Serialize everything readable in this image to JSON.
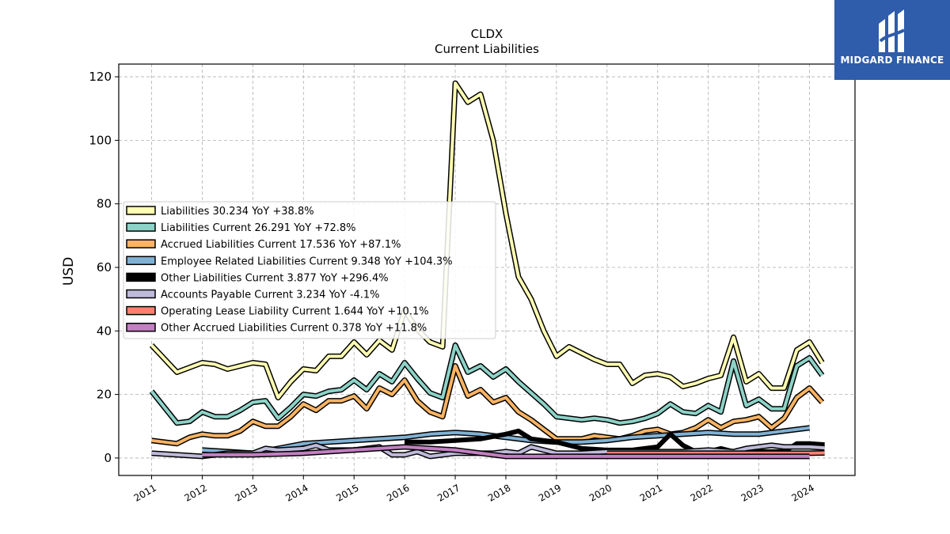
{
  "chart_data": {
    "type": "line",
    "title": "CLDX",
    "subtitle": "Current  Liabilities",
    "ylabel": "USD",
    "xlabel": "",
    "ylim": [
      -5.5,
      124
    ],
    "xlim": [
      2010.35,
      2024.9
    ],
    "yticks": [
      0,
      20,
      40,
      60,
      80,
      100,
      120
    ],
    "xticks": [
      2011,
      2012,
      2013,
      2014,
      2015,
      2016,
      2017,
      2018,
      2019,
      2020,
      2021,
      2022,
      2023,
      2024
    ],
    "grid": true,
    "legend_position": "center-left",
    "series": [
      {
        "name": "Liabilities  30.234 YoY +38.8%",
        "color": "#ffffb3",
        "width": 4,
        "points": [
          [
            2011.0,
            35.5
          ],
          [
            2011.5,
            27
          ],
          [
            2012.0,
            30
          ],
          [
            2012.25,
            29.5
          ],
          [
            2012.5,
            28
          ],
          [
            2013.0,
            30
          ],
          [
            2013.25,
            29.5
          ],
          [
            2013.5,
            19
          ],
          [
            2013.75,
            24
          ],
          [
            2014.0,
            28
          ],
          [
            2014.25,
            27.5
          ],
          [
            2014.5,
            32
          ],
          [
            2014.75,
            32
          ],
          [
            2015.0,
            36.5
          ],
          [
            2015.25,
            32.5
          ],
          [
            2015.5,
            37
          ],
          [
            2015.75,
            34
          ],
          [
            2016.0,
            46.5
          ],
          [
            2016.25,
            40.5
          ],
          [
            2016.5,
            36.5
          ],
          [
            2016.75,
            35
          ],
          [
            2017.0,
            118
          ],
          [
            2017.25,
            112
          ],
          [
            2017.5,
            114.5
          ],
          [
            2017.75,
            100
          ],
          [
            2018.0,
            77
          ],
          [
            2018.25,
            57
          ],
          [
            2018.5,
            50
          ],
          [
            2018.75,
            40
          ],
          [
            2019.0,
            32
          ],
          [
            2019.25,
            35
          ],
          [
            2019.5,
            33
          ],
          [
            2019.75,
            31
          ],
          [
            2020.0,
            29.5
          ],
          [
            2020.25,
            29.5
          ],
          [
            2020.5,
            23.5
          ],
          [
            2020.75,
            26
          ],
          [
            2021.0,
            26.5
          ],
          [
            2021.25,
            25.5
          ],
          [
            2021.5,
            22.5
          ],
          [
            2021.75,
            23.5
          ],
          [
            2022.0,
            25
          ],
          [
            2022.25,
            26
          ],
          [
            2022.5,
            38
          ],
          [
            2022.75,
            24
          ],
          [
            2023.0,
            26.5
          ],
          [
            2023.25,
            22
          ],
          [
            2023.5,
            22
          ],
          [
            2023.75,
            34
          ],
          [
            2024.0,
            36.5
          ],
          [
            2024.25,
            30
          ]
        ]
      },
      {
        "name": "Liabilities Current  26.291 YoY +72.8%",
        "color": "#8dd3c7",
        "width": 4,
        "points": [
          [
            2011.0,
            21
          ],
          [
            2011.5,
            11
          ],
          [
            2011.75,
            11.5
          ],
          [
            2012.0,
            14.5
          ],
          [
            2012.25,
            13
          ],
          [
            2012.5,
            13
          ],
          [
            2012.75,
            15
          ],
          [
            2013.0,
            17.5
          ],
          [
            2013.25,
            18
          ],
          [
            2013.5,
            12.5
          ],
          [
            2013.75,
            16
          ],
          [
            2014.0,
            20
          ],
          [
            2014.25,
            19.5
          ],
          [
            2014.5,
            21
          ],
          [
            2014.75,
            21.5
          ],
          [
            2015.0,
            24.5
          ],
          [
            2015.25,
            21.5
          ],
          [
            2015.5,
            26.5
          ],
          [
            2015.75,
            24
          ],
          [
            2016.0,
            30
          ],
          [
            2016.25,
            25
          ],
          [
            2016.5,
            20.5
          ],
          [
            2016.75,
            19
          ],
          [
            2017.0,
            35.5
          ],
          [
            2017.25,
            27
          ],
          [
            2017.5,
            29
          ],
          [
            2017.75,
            25.5
          ],
          [
            2018.0,
            28
          ],
          [
            2018.25,
            24
          ],
          [
            2018.5,
            20.5
          ],
          [
            2018.75,
            17
          ],
          [
            2019.0,
            13
          ],
          [
            2019.25,
            12.5
          ],
          [
            2019.5,
            12
          ],
          [
            2019.75,
            12.5
          ],
          [
            2020.0,
            12
          ],
          [
            2020.25,
            11
          ],
          [
            2020.5,
            11.5
          ],
          [
            2020.75,
            12.5
          ],
          [
            2021.0,
            14
          ],
          [
            2021.25,
            17
          ],
          [
            2021.5,
            14.5
          ],
          [
            2021.75,
            14
          ],
          [
            2022.0,
            16.5
          ],
          [
            2022.25,
            14.5
          ],
          [
            2022.5,
            30.5
          ],
          [
            2022.75,
            16.5
          ],
          [
            2023.0,
            18.5
          ],
          [
            2023.25,
            15.5
          ],
          [
            2023.5,
            15.5
          ],
          [
            2023.75,
            29
          ],
          [
            2024.0,
            31.5
          ],
          [
            2024.25,
            26
          ]
        ]
      },
      {
        "name": "Accrued Liabilities Current  17.536 YoY +87.1%",
        "color": "#fdb462",
        "width": 4,
        "points": [
          [
            2011.0,
            5.5
          ],
          [
            2011.5,
            4.5
          ],
          [
            2011.75,
            6.5
          ],
          [
            2012.0,
            7.5
          ],
          [
            2012.25,
            7
          ],
          [
            2012.5,
            7
          ],
          [
            2012.75,
            8.5
          ],
          [
            2013.0,
            11.5
          ],
          [
            2013.25,
            10
          ],
          [
            2013.5,
            10
          ],
          [
            2013.75,
            13
          ],
          [
            2014.0,
            17
          ],
          [
            2014.25,
            15
          ],
          [
            2014.5,
            18
          ],
          [
            2014.75,
            18
          ],
          [
            2015.0,
            19.5
          ],
          [
            2015.25,
            15.5
          ],
          [
            2015.5,
            22
          ],
          [
            2015.75,
            20
          ],
          [
            2016.0,
            24.5
          ],
          [
            2016.25,
            18
          ],
          [
            2016.5,
            14.5
          ],
          [
            2016.75,
            13
          ],
          [
            2017.0,
            29
          ],
          [
            2017.25,
            19.5
          ],
          [
            2017.5,
            21.5
          ],
          [
            2017.75,
            17.5
          ],
          [
            2018.0,
            19
          ],
          [
            2018.25,
            14.5
          ],
          [
            2018.5,
            12
          ],
          [
            2018.75,
            9
          ],
          [
            2019.0,
            6
          ],
          [
            2019.25,
            6
          ],
          [
            2019.5,
            6
          ],
          [
            2019.75,
            7
          ],
          [
            2020.0,
            6.5
          ],
          [
            2020.25,
            6
          ],
          [
            2020.5,
            7
          ],
          [
            2020.75,
            8.5
          ],
          [
            2021.0,
            9
          ],
          [
            2021.25,
            7.5
          ],
          [
            2021.5,
            8
          ],
          [
            2021.75,
            9.5
          ],
          [
            2022.0,
            12
          ],
          [
            2022.25,
            9.5
          ],
          [
            2022.5,
            11.5
          ],
          [
            2022.75,
            12
          ],
          [
            2023.0,
            13
          ],
          [
            2023.25,
            9.5
          ],
          [
            2023.5,
            12.5
          ],
          [
            2023.75,
            19
          ],
          [
            2024.0,
            22
          ],
          [
            2024.25,
            17.5
          ]
        ]
      },
      {
        "name": "Employee Related Liabilities Current  9.348 YoY +104.3%",
        "color": "#80b1d3",
        "width": 4,
        "points": [
          [
            2012.0,
            2.5
          ],
          [
            2013.0,
            1.5
          ],
          [
            2013.5,
            3
          ],
          [
            2014.0,
            4.5
          ],
          [
            2015.0,
            5.5
          ],
          [
            2016.0,
            6.5
          ],
          [
            2016.5,
            7.5
          ],
          [
            2017.0,
            8
          ],
          [
            2017.5,
            7.5
          ],
          [
            2018.0,
            6.5
          ],
          [
            2018.5,
            5.5
          ],
          [
            2019.0,
            5
          ],
          [
            2019.5,
            5
          ],
          [
            2020.0,
            5.5
          ],
          [
            2020.5,
            6.5
          ],
          [
            2021.0,
            7
          ],
          [
            2021.5,
            7.5
          ],
          [
            2022.0,
            8
          ],
          [
            2022.5,
            7.5
          ],
          [
            2023.0,
            7.5
          ],
          [
            2023.5,
            8.5
          ],
          [
            2024.0,
            9.5
          ]
        ]
      },
      {
        "name": "Other Liabilities Current  3.877 YoY +296.4%",
        "color": "#000000",
        "width": 6,
        "points": [
          [
            2016.0,
            5
          ],
          [
            2016.5,
            5
          ],
          [
            2017.0,
            5.5
          ],
          [
            2017.5,
            6
          ],
          [
            2018.0,
            7.5
          ],
          [
            2018.25,
            8.5
          ],
          [
            2018.5,
            6
          ],
          [
            2019.0,
            5
          ],
          [
            2019.25,
            4
          ],
          [
            2019.5,
            3
          ],
          [
            2020.0,
            2.5
          ],
          [
            2020.5,
            2.5
          ],
          [
            2021.0,
            3.5
          ],
          [
            2021.25,
            7.5
          ],
          [
            2021.5,
            4
          ],
          [
            2021.75,
            2
          ],
          [
            2022.0,
            2
          ],
          [
            2022.25,
            3
          ],
          [
            2022.5,
            2
          ],
          [
            2023.0,
            2
          ],
          [
            2023.5,
            2
          ],
          [
            2023.75,
            4.5
          ],
          [
            2024.0,
            4.5
          ],
          [
            2024.3,
            4.2
          ]
        ]
      },
      {
        "name": "Accounts Payable Current  3.234 YoY -4.1%",
        "color": "#bebada",
        "width": 4,
        "points": [
          [
            2011.0,
            1.5
          ],
          [
            2011.5,
            1
          ],
          [
            2012.0,
            0.5
          ],
          [
            2012.5,
            1.5
          ],
          [
            2013.0,
            1.5
          ],
          [
            2013.25,
            3
          ],
          [
            2013.5,
            2.5
          ],
          [
            2014.0,
            3
          ],
          [
            2014.25,
            4
          ],
          [
            2014.5,
            2.5
          ],
          [
            2015.0,
            2.5
          ],
          [
            2015.5,
            3.5
          ],
          [
            2015.75,
            1
          ],
          [
            2016.0,
            1
          ],
          [
            2016.25,
            2
          ],
          [
            2016.5,
            0.5
          ],
          [
            2016.75,
            1
          ],
          [
            2017.0,
            1.5
          ],
          [
            2017.5,
            1.5
          ],
          [
            2017.75,
            1.5
          ],
          [
            2018.0,
            2
          ],
          [
            2018.25,
            1.5
          ],
          [
            2018.5,
            3.5
          ],
          [
            2018.75,
            2.5
          ],
          [
            2019.0,
            1.5
          ],
          [
            2019.5,
            1.5
          ],
          [
            2020.0,
            2
          ],
          [
            2020.5,
            2
          ],
          [
            2021.0,
            2
          ],
          [
            2021.5,
            2
          ],
          [
            2022.0,
            2.5
          ],
          [
            2022.5,
            2
          ],
          [
            2022.75,
            3
          ],
          [
            2023.0,
            3.5
          ],
          [
            2023.25,
            4
          ],
          [
            2023.5,
            3.5
          ],
          [
            2023.75,
            3.5
          ],
          [
            2024.0,
            3.5
          ],
          [
            2024.3,
            3.2
          ]
        ]
      },
      {
        "name": "Operating Lease Liability Current  1.644 YoY +10.1%",
        "color": "#fb8072",
        "width": 4,
        "points": [
          [
            2020.0,
            1.5
          ],
          [
            2021.0,
            1.5
          ],
          [
            2022.0,
            1.5
          ],
          [
            2023.0,
            1.5
          ],
          [
            2024.0,
            1.5
          ],
          [
            2024.3,
            1.6
          ]
        ]
      },
      {
        "name": "Other Accrued Liabilities Current  0.378 YoY +11.8%",
        "color": "#c27fc2",
        "width": 4,
        "points": [
          [
            2012.0,
            1
          ],
          [
            2013.0,
            1
          ],
          [
            2014.0,
            1.5
          ],
          [
            2015.0,
            2.5
          ],
          [
            2016.0,
            3.5
          ],
          [
            2017.0,
            2.5
          ],
          [
            2017.5,
            1.5
          ],
          [
            2018.0,
            0.5
          ],
          [
            2019.0,
            0.5
          ],
          [
            2020.0,
            0.5
          ],
          [
            2021.0,
            0.5
          ],
          [
            2022.0,
            0.5
          ],
          [
            2023.0,
            0.5
          ],
          [
            2024.0,
            0.5
          ]
        ]
      }
    ]
  },
  "logo": {
    "text": "MIDGARD FINANCE",
    "background": "#2f5cab"
  }
}
